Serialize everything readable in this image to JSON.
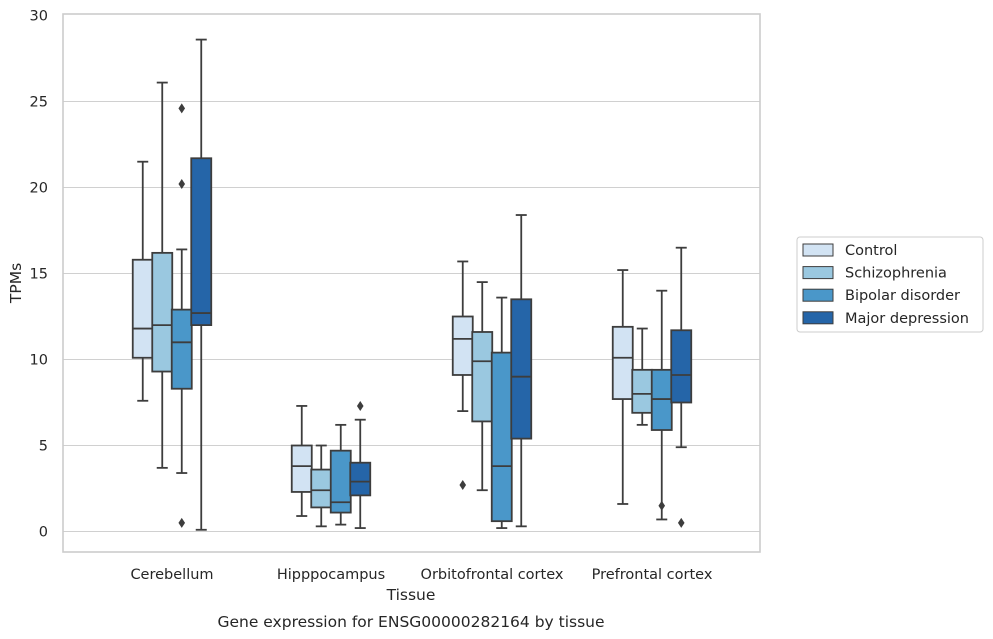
{
  "chart_data": {
    "type": "box",
    "xlabel": "Tissue",
    "ylabel": "TPMs",
    "caption": "Gene expression for ENSG00000282164 by tissue",
    "ylim": [
      -1.2,
      30.2
    ],
    "yticks": [
      0,
      5,
      10,
      15,
      20,
      25,
      30
    ],
    "grid": "horizontal",
    "legend_position": "right-outside",
    "categories": [
      "Cerebellum",
      "Hipppocampus",
      "Orbitofrontal cortex",
      "Prefrontal cortex"
    ],
    "colors": [
      "#d2e3f3",
      "#9ac8e0",
      "#4a97c9",
      "#2565a8"
    ],
    "series": [
      {
        "name": "Control",
        "boxes": [
          {
            "whislo": 7.6,
            "q1": 10.1,
            "med": 11.8,
            "q3": 15.8,
            "whishi": 21.5,
            "fliers": []
          },
          {
            "whislo": 0.9,
            "q1": 2.3,
            "med": 3.8,
            "q3": 5.0,
            "whishi": 7.3,
            "fliers": []
          },
          {
            "whislo": 7.0,
            "q1": 9.1,
            "med": 11.2,
            "q3": 12.5,
            "whishi": 15.7,
            "fliers": [
              2.7
            ]
          },
          {
            "whislo": 1.6,
            "q1": 7.7,
            "med": 10.1,
            "q3": 11.9,
            "whishi": 15.2,
            "fliers": []
          }
        ]
      },
      {
        "name": "Schizophrenia",
        "boxes": [
          {
            "whislo": 3.7,
            "q1": 9.3,
            "med": 12.0,
            "q3": 16.2,
            "whishi": 26.1,
            "fliers": []
          },
          {
            "whislo": 0.3,
            "q1": 1.4,
            "med": 2.4,
            "q3": 3.6,
            "whishi": 5.0,
            "fliers": []
          },
          {
            "whislo": 2.4,
            "q1": 6.4,
            "med": 9.9,
            "q3": 11.6,
            "whishi": 14.5,
            "fliers": []
          },
          {
            "whislo": 6.2,
            "q1": 6.9,
            "med": 8.0,
            "q3": 9.4,
            "whishi": 11.8,
            "fliers": []
          }
        ]
      },
      {
        "name": "Bipolar disorder",
        "boxes": [
          {
            "whislo": 3.4,
            "q1": 8.3,
            "med": 11.0,
            "q3": 12.9,
            "whishi": 16.4,
            "fliers": [
              24.6,
              20.2,
              0.5
            ]
          },
          {
            "whislo": 0.4,
            "q1": 1.1,
            "med": 1.7,
            "q3": 4.7,
            "whishi": 6.2,
            "fliers": []
          },
          {
            "whislo": 0.2,
            "q1": 0.6,
            "med": 3.8,
            "q3": 10.4,
            "whishi": 13.6,
            "fliers": []
          },
          {
            "whislo": 0.7,
            "q1": 5.9,
            "med": 7.7,
            "q3": 9.4,
            "whishi": 14.0,
            "fliers": [
              1.5
            ]
          }
        ]
      },
      {
        "name": "Major depression",
        "boxes": [
          {
            "whislo": 0.1,
            "q1": 12.0,
            "med": 12.7,
            "q3": 21.7,
            "whishi": 28.6,
            "fliers": []
          },
          {
            "whislo": 0.2,
            "q1": 2.1,
            "med": 2.9,
            "q3": 4.0,
            "whishi": 6.5,
            "fliers": [
              7.3
            ]
          },
          {
            "whislo": 0.3,
            "q1": 5.4,
            "med": 9.0,
            "q3": 13.5,
            "whishi": 18.4,
            "fliers": []
          },
          {
            "whislo": 4.9,
            "q1": 7.5,
            "med": 9.1,
            "q3": 11.7,
            "whishi": 16.5,
            "fliers": [
              0.5
            ]
          }
        ]
      }
    ]
  }
}
